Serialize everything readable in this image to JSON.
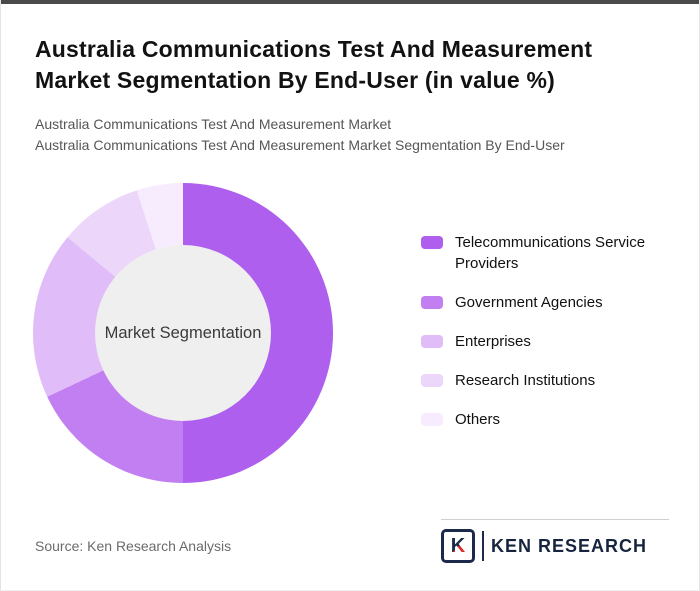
{
  "page": {
    "title": "Australia Communications Test And Measurement Market Segmentation By End-User (in value %)",
    "subtitle1": "Australia Communications Test And Measurement Market",
    "subtitle2": "Australia Communications Test And Measurement Market Segmentation By End-User",
    "source": "Source: Ken Research Analysis"
  },
  "logo": {
    "monogram": "K",
    "brand": "KEN RESEARCH"
  },
  "chart_data": {
    "type": "pie",
    "subtype": "donut",
    "title": "Australia Communications Test And Measurement Market Segmentation By End-User (in value %)",
    "center_label": "Market Segmentation",
    "categories": [
      "Telecommunications Service Providers",
      "Government Agencies",
      "Enterprises",
      "Research Institutions",
      "Others"
    ],
    "values": [
      50,
      18,
      18,
      9,
      5
    ],
    "values_note": "estimated from arc angles; no numeric labels shown",
    "colors": [
      "#ae5fee",
      "#c17ff2",
      "#e0bcf8",
      "#ecd7fb",
      "#f6ecfe"
    ],
    "legend_position": "right",
    "donut_hole_color": "#efefef",
    "start_angle_deg": 0,
    "direction": "clockwise"
  }
}
